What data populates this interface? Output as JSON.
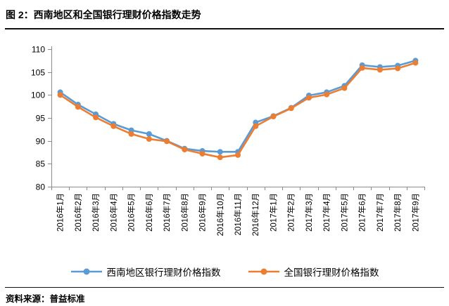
{
  "header": {
    "title": "图 2：西南地区和全国银行理财价格指数走势"
  },
  "footer": {
    "source_label": "资料来源：普益标准"
  },
  "colors": {
    "southwest_series": "#5B9BD5",
    "national_series": "#ED7D31",
    "axis_line": "#8C8C8C",
    "text": "#000000",
    "background": "#FFFFFF"
  },
  "chart_data": {
    "type": "line",
    "title": "图 2：西南地区和全国银行理财价格指数走势",
    "xlabel": "",
    "ylabel": "",
    "ylim": [
      80,
      110
    ],
    "ytick_step": 5,
    "ytick_labels": [
      "80",
      "85",
      "90",
      "95",
      "100",
      "105",
      "110"
    ],
    "grid": false,
    "legend_position": "bottom",
    "marker": "circle",
    "categories": [
      "2016年1月",
      "2016年2月",
      "2016年3月",
      "2016年4月",
      "2016年5月",
      "2016年6月",
      "2016年7月",
      "2016年8月",
      "2016年9月",
      "2016年10月",
      "2016年11月",
      "2016年12月",
      "2017年1月",
      "2017年2月",
      "2017年3月",
      "2017年4月",
      "2017年5月",
      "2017年6月",
      "2017年7月",
      "2017年8月",
      "2017年9月"
    ],
    "series": [
      {
        "name": "西南地区银行理财价格指数",
        "color": "#5B9BD5",
        "values": [
          100.6,
          97.9,
          95.8,
          93.7,
          92.3,
          91.5,
          90.0,
          88.3,
          87.8,
          87.6,
          87.6,
          94.0,
          95.4,
          97.2,
          99.9,
          100.6,
          102.0,
          106.5,
          106.1,
          106.4,
          107.5
        ]
      },
      {
        "name": "全国银行理财价格指数",
        "color": "#ED7D31",
        "values": [
          100.0,
          97.4,
          95.1,
          93.2,
          91.5,
          90.4,
          89.9,
          88.1,
          87.2,
          86.4,
          86.9,
          93.2,
          95.3,
          97.1,
          99.4,
          100.1,
          101.5,
          105.9,
          105.5,
          105.8,
          107.0
        ]
      }
    ]
  }
}
